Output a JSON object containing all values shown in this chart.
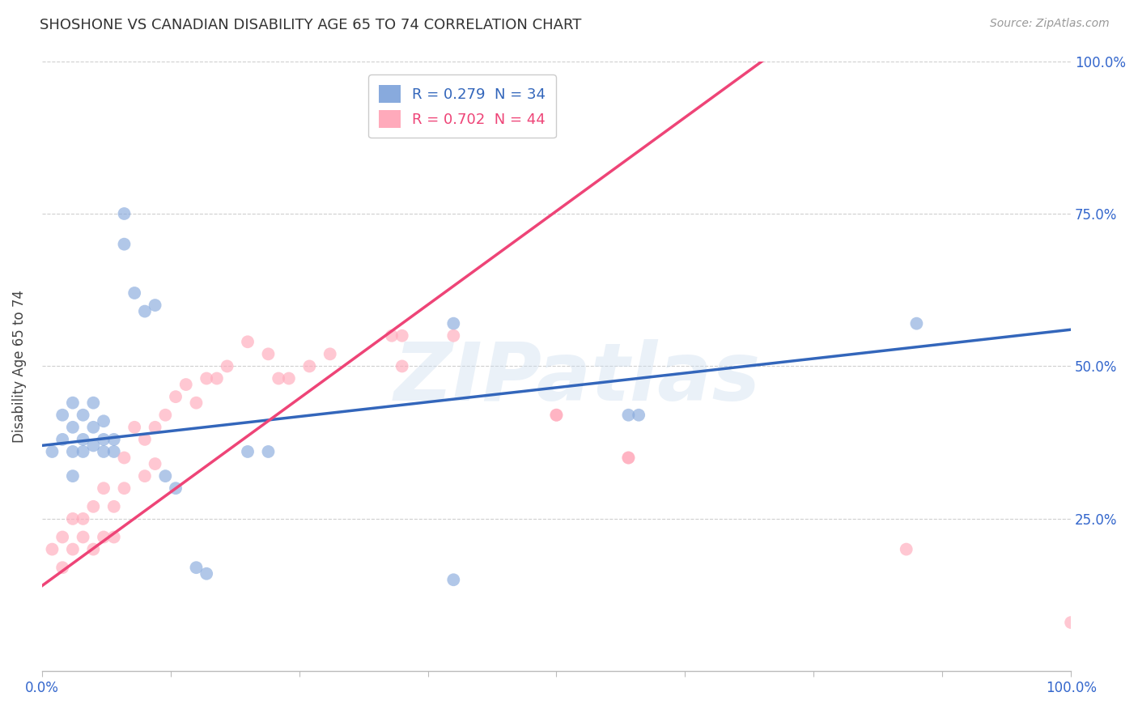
{
  "title": "SHOSHONE VS CANADIAN DISABILITY AGE 65 TO 74 CORRELATION CHART",
  "source_text": "Source: ZipAtlas.com",
  "ylabel": "Disability Age 65 to 74",
  "watermark": "ZIPatlas",
  "legend_label_blue": "R = 0.279  N = 34",
  "legend_label_pink": "R = 0.702  N = 44",
  "blue_color": "#88AADD",
  "pink_color": "#FFAABB",
  "blue_line_color": "#3366BB",
  "pink_line_color": "#EE4477",
  "grid_color": "#BBBBBB",
  "background_color": "#FFFFFF",
  "x_min": 0.0,
  "x_max": 1.0,
  "y_min": 0.0,
  "y_max": 1.0,
  "blue_x": [
    0.01,
    0.02,
    0.02,
    0.03,
    0.03,
    0.03,
    0.03,
    0.04,
    0.04,
    0.04,
    0.05,
    0.05,
    0.05,
    0.06,
    0.06,
    0.06,
    0.07,
    0.07,
    0.08,
    0.08,
    0.09,
    0.1,
    0.11,
    0.12,
    0.13,
    0.15,
    0.16,
    0.2,
    0.22,
    0.4,
    0.57,
    0.58,
    0.85,
    0.4
  ],
  "blue_y": [
    0.36,
    0.42,
    0.38,
    0.4,
    0.44,
    0.36,
    0.32,
    0.38,
    0.36,
    0.42,
    0.44,
    0.4,
    0.37,
    0.38,
    0.41,
    0.36,
    0.38,
    0.36,
    0.75,
    0.7,
    0.62,
    0.59,
    0.6,
    0.32,
    0.3,
    0.17,
    0.16,
    0.36,
    0.36,
    0.57,
    0.42,
    0.42,
    0.57,
    0.15
  ],
  "pink_x": [
    0.01,
    0.02,
    0.02,
    0.03,
    0.03,
    0.04,
    0.04,
    0.05,
    0.05,
    0.06,
    0.06,
    0.07,
    0.07,
    0.08,
    0.08,
    0.09,
    0.1,
    0.1,
    0.11,
    0.11,
    0.12,
    0.13,
    0.14,
    0.15,
    0.16,
    0.17,
    0.18,
    0.2,
    0.22,
    0.23,
    0.24,
    0.26,
    0.28,
    0.34,
    0.35,
    0.35,
    0.4,
    0.5,
    0.5,
    0.57,
    0.57,
    0.84,
    0.35,
    1.0
  ],
  "pink_y": [
    0.2,
    0.22,
    0.17,
    0.25,
    0.2,
    0.25,
    0.22,
    0.27,
    0.2,
    0.3,
    0.22,
    0.27,
    0.22,
    0.35,
    0.3,
    0.4,
    0.38,
    0.32,
    0.4,
    0.34,
    0.42,
    0.45,
    0.47,
    0.44,
    0.48,
    0.48,
    0.5,
    0.54,
    0.52,
    0.48,
    0.48,
    0.5,
    0.52,
    0.55,
    0.55,
    0.5,
    0.55,
    0.42,
    0.42,
    0.35,
    0.35,
    0.2,
    0.95,
    0.08
  ],
  "blue_line_x": [
    0.0,
    1.0
  ],
  "blue_line_y": [
    0.37,
    0.56
  ],
  "pink_line_x": [
    0.0,
    0.7
  ],
  "pink_line_y": [
    0.14,
    1.0
  ]
}
